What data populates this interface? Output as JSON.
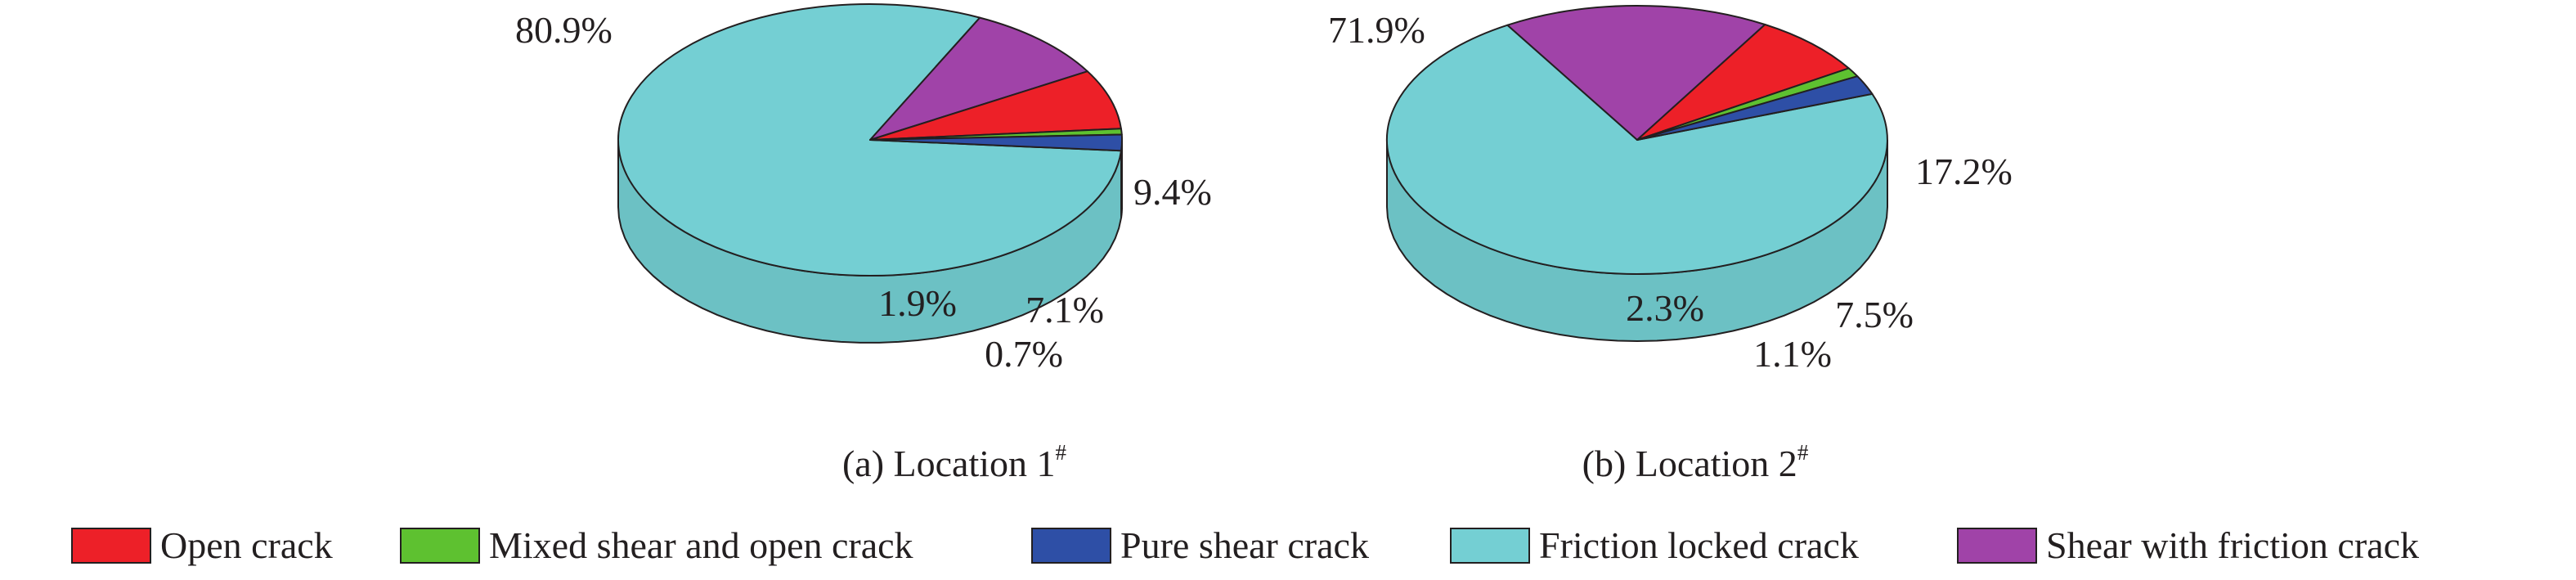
{
  "chart_data": [
    {
      "type": "pie",
      "style": "3d",
      "caption": "(a) Location 1",
      "caption_sup": "#",
      "slices": [
        {
          "name": "Friction locked crack",
          "value": 80.9,
          "label": "80.9%",
          "color": "#74cfd3"
        },
        {
          "name": "Shear with friction crack",
          "value": 9.4,
          "label": "9.4%",
          "color": "#a043a8"
        },
        {
          "name": "Open crack",
          "value": 7.1,
          "label": "7.1%",
          "color": "#ed2028"
        },
        {
          "name": "Mixed shear and open crack",
          "value": 0.7,
          "label": "0.7%",
          "color": "#5ec130"
        },
        {
          "name": "Pure shear crack",
          "value": 1.9,
          "label": "1.9%",
          "color": "#2e4fa6"
        }
      ]
    },
    {
      "type": "pie",
      "style": "3d",
      "caption": "(b) Location 2",
      "caption_sup": "#",
      "slices": [
        {
          "name": "Friction locked crack",
          "value": 71.9,
          "label": "71.9%",
          "color": "#74cfd3"
        },
        {
          "name": "Shear with friction crack",
          "value": 17.2,
          "label": "17.2%",
          "color": "#a043a8"
        },
        {
          "name": "Open crack",
          "value": 7.5,
          "label": "7.5%",
          "color": "#ed2028"
        },
        {
          "name": "Mixed shear and open crack",
          "value": 1.1,
          "label": "1.1%",
          "color": "#5ec130"
        },
        {
          "name": "Pure shear crack",
          "value": 2.3,
          "label": "2.3%",
          "color": "#2e4fa6"
        }
      ]
    }
  ],
  "legend": {
    "placement": "bottom",
    "items": [
      {
        "label": "Open crack",
        "color": "#ed2028"
      },
      {
        "label": "Mixed shear and open crack",
        "color": "#5ec130"
      },
      {
        "label": "Pure shear crack",
        "color": "#2e4fa6"
      },
      {
        "label": "Friction locked crack",
        "color": "#74cfd3"
      },
      {
        "label": "Shear with friction crack",
        "color": "#a043a8"
      }
    ]
  }
}
